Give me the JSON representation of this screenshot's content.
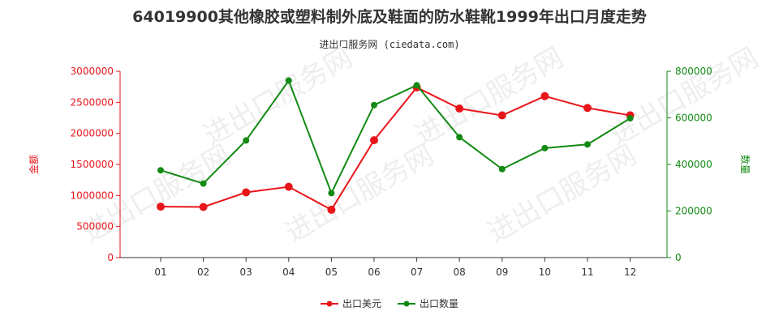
{
  "header": {
    "title": "64019900其他橡胶或塑料制外底及鞋面的防水鞋靴1999年出口月度走势",
    "subtitle": "进出口服务网 (ciedata.com)"
  },
  "colors": {
    "value_series": "#e8161b",
    "quantity_series": "#138a14",
    "axis": "#333333",
    "watermark": "#eeeeee"
  },
  "watermark_text": "进出口服务网",
  "chart_data": {
    "type": "line",
    "categories": [
      "01",
      "02",
      "03",
      "04",
      "05",
      "06",
      "07",
      "08",
      "09",
      "10",
      "11",
      "12"
    ],
    "left_axis": {
      "label": "金额",
      "ylim": [
        0,
        3000000
      ],
      "ticks": [
        "0",
        "500000",
        "1000000",
        "1500000",
        "2000000",
        "2500000",
        "3000000"
      ]
    },
    "right_axis": {
      "label": "数量",
      "ylim": [
        0,
        800000
      ],
      "ticks": [
        "0",
        "200000",
        "400000",
        "600000",
        "800000"
      ]
    },
    "series": [
      {
        "name": "出口美元",
        "axis": "left",
        "values": [
          820000,
          815000,
          1050000,
          1140000,
          770000,
          1890000,
          2740000,
          2400000,
          2290000,
          2600000,
          2410000,
          2290000
        ]
      },
      {
        "name": "出口数量",
        "axis": "right",
        "values": [
          375000,
          318000,
          503000,
          760000,
          277000,
          655000,
          740000,
          517000,
          380000,
          470000,
          486000,
          598000
        ]
      }
    ],
    "legend_position": "bottom-center",
    "grid": false
  }
}
